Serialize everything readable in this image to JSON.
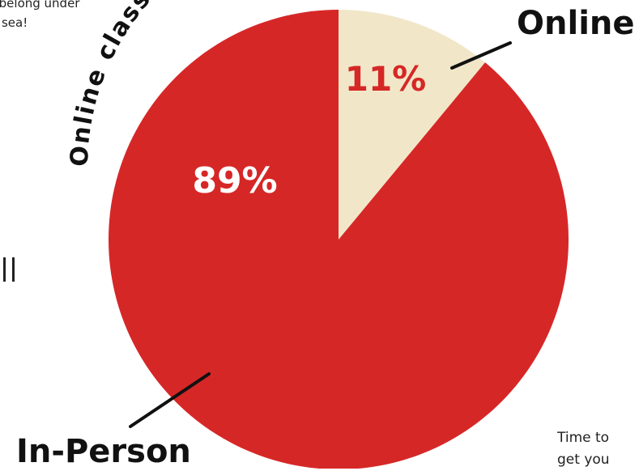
{
  "chart_data": {
    "type": "pie",
    "title": "Online class or in-person?",
    "series": [
      {
        "values": [
          11,
          89
        ]
      }
    ],
    "categories": [
      "Online",
      "In-Person"
    ],
    "values": [
      11,
      89
    ],
    "data_labels": [
      "11%",
      "89%"
    ],
    "legend": "none",
    "colors": [
      "#f1e7c8",
      "#d62727"
    ],
    "label_colors": [
      "#d62727",
      "#ffffff"
    ]
  },
  "side_notes": {
    "top_left_line1": "t belong under",
    "top_left_line2": "e sea!",
    "bottom_right_line1": "Time to",
    "bottom_right_line2": "get you"
  }
}
